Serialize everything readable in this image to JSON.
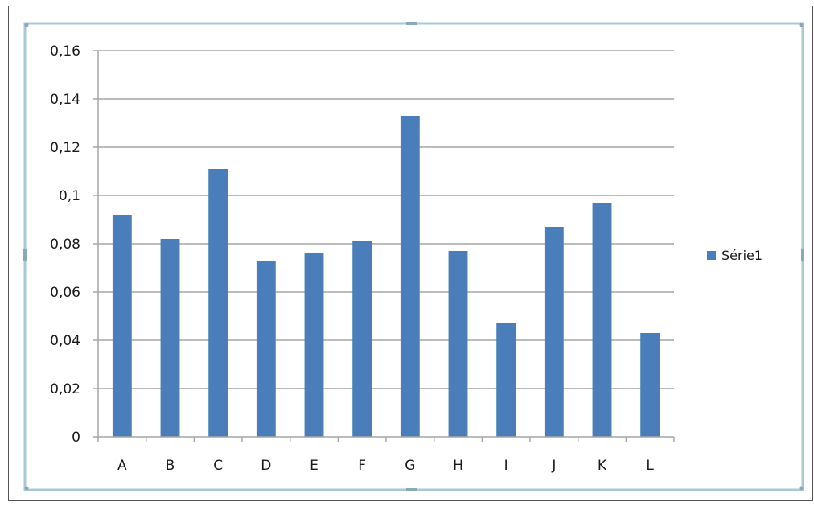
{
  "chart_data": {
    "type": "bar",
    "categories": [
      "A",
      "B",
      "C",
      "D",
      "E",
      "F",
      "G",
      "H",
      "I",
      "J",
      "K",
      "L"
    ],
    "series": [
      {
        "name": "Série1",
        "values": [
          0.092,
          0.082,
          0.111,
          0.073,
          0.076,
          0.081,
          0.133,
          0.077,
          0.047,
          0.087,
          0.097,
          0.043
        ]
      }
    ],
    "ylim": [
      0,
      0.16
    ],
    "yticks": [
      "0",
      "0,02",
      "0,04",
      "0,06",
      "0,08",
      "0,1",
      "0,12",
      "0,14",
      "0,16"
    ],
    "grid": true,
    "legend": "right",
    "colors": {
      "bar": "#4a7ebb",
      "grid": "#a6a6a6",
      "frame": "#a9c8d6",
      "text": "#1a1a1a"
    }
  }
}
